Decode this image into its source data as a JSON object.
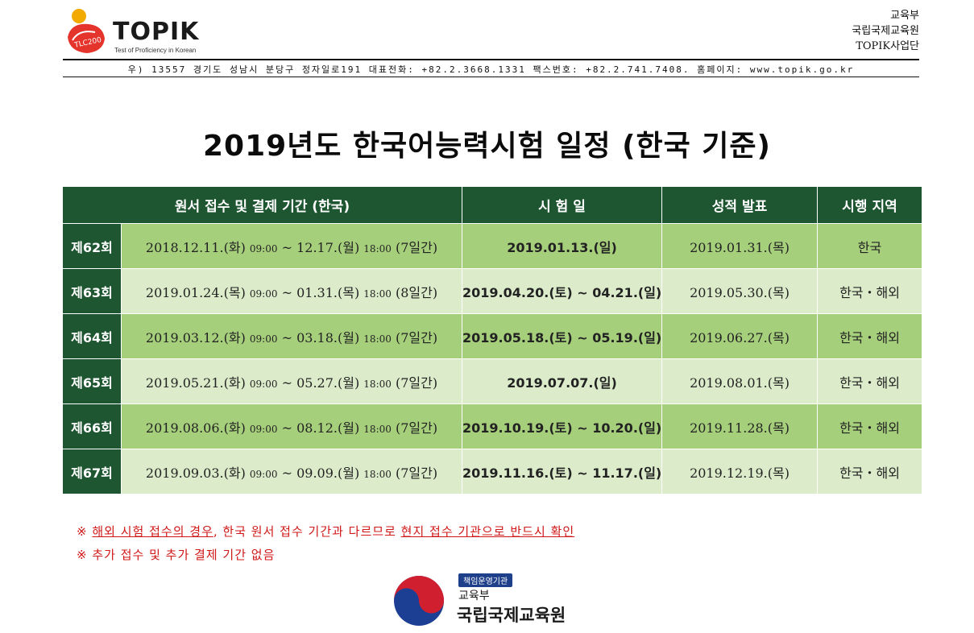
{
  "header": {
    "logo_text": "TOPIK",
    "logo_subtitle": "Test of Proficiency in Korean",
    "logo_emblem_text": "TLC200",
    "org_lines": [
      "교육부",
      "국립국제교육원",
      "TOPIK사업단"
    ],
    "address": "우) 13557  경기도 성남시 분당구 정자일로191  대표전화: +82.2.3668.1331  팩스번호: +82.2.741.7408.  홈페이지: www.topik.go.kr"
  },
  "title": "2019년도 한국어능력시험 일정 (한국 기준)",
  "table": {
    "headers": [
      "원서 접수 및 결제 기간 (한국)",
      "시 험 일",
      "성적 발표",
      "시행 지역"
    ],
    "rows": [
      {
        "round": "제62회",
        "reg_start": "2018.12.11.(화)",
        "reg_start_time": "09:00",
        "sep": "~",
        "reg_end": "12.17.(월)",
        "reg_end_time": "18:00",
        "reg_days": "(7일간)",
        "exam": "2019.01.13.(일)",
        "result": "2019.01.31.(목)",
        "region": "한국"
      },
      {
        "round": "제63회",
        "reg_start": "2019.01.24.(목)",
        "reg_start_time": "09:00",
        "sep": "~",
        "reg_end": "01.31.(목)",
        "reg_end_time": "18:00",
        "reg_days": "(8일간)",
        "exam": "2019.04.20.(토) ~ 04.21.(일)",
        "result": "2019.05.30.(목)",
        "region": "한국・해외"
      },
      {
        "round": "제64회",
        "reg_start": "2019.03.12.(화)",
        "reg_start_time": "09:00",
        "sep": "~",
        "reg_end": "03.18.(월)",
        "reg_end_time": "18:00",
        "reg_days": "(7일간)",
        "exam": "2019.05.18.(토) ~ 05.19.(일)",
        "result": "2019.06.27.(목)",
        "region": "한국・해외"
      },
      {
        "round": "제65회",
        "reg_start": "2019.05.21.(화)",
        "reg_start_time": "09:00",
        "sep": "~",
        "reg_end": "05.27.(월)",
        "reg_end_time": "18:00",
        "reg_days": "(7일간)",
        "exam": "2019.07.07.(일)",
        "result": "2019.08.01.(목)",
        "region": "한국・해외"
      },
      {
        "round": "제66회",
        "reg_start": "2019.08.06.(화)",
        "reg_start_time": "09:00",
        "sep": "~",
        "reg_end": "08.12.(월)",
        "reg_end_time": "18:00",
        "reg_days": "(7일간)",
        "exam": "2019.10.19.(토) ~ 10.20.(일)",
        "result": "2019.11.28.(목)",
        "region": "한국・해외"
      },
      {
        "round": "제67회",
        "reg_start": "2019.09.03.(화)",
        "reg_start_time": "09:00",
        "sep": "~",
        "reg_end": "09.09.(월)",
        "reg_end_time": "18:00",
        "reg_days": "(7일간)",
        "exam": "2019.11.16.(토) ~ 11.17.(일)",
        "result": "2019.12.19.(목)",
        "region": "한국・해외"
      }
    ]
  },
  "notes": {
    "line1_mark": "※",
    "line1_a": "해외 시험 접수의 경우",
    "line1_b": ", 한국 원서 접수 기간과 다르므로 ",
    "line1_c": "현지 접수 기관으로 반드시 확인",
    "line2_mark": "※",
    "line2": "추가 접수 및 추가 결제 기간 없음"
  },
  "footer": {
    "badge": "책임운영기관",
    "ministry": "교육부",
    "institute": "국립국제교육원"
  },
  "colors": {
    "header_green": "#1e5631",
    "row_dark": "#a6cf7c",
    "row_light": "#dcecca",
    "note_red": "#d01818"
  }
}
